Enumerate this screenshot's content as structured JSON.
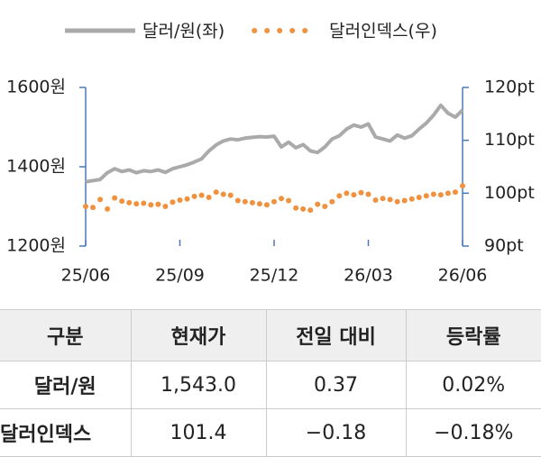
{
  "chart_data": {
    "type": "line",
    "categories": [
      "25/06",
      null,
      null,
      null,
      null,
      null,
      null,
      null,
      null,
      null,
      null,
      null,
      null,
      "25/09",
      null,
      null,
      null,
      null,
      null,
      null,
      null,
      null,
      null,
      null,
      null,
      null,
      "25/12",
      null,
      null,
      null,
      null,
      null,
      null,
      null,
      null,
      null,
      null,
      null,
      null,
      "26/03",
      null,
      null,
      null,
      null,
      null,
      null,
      null,
      null,
      null,
      null,
      null,
      null,
      "26/06"
    ],
    "series": [
      {
        "name": "달러/원(좌)",
        "color": "#aaaaaa",
        "style": "line",
        "values": [
          1362,
          1365,
          1368,
          1385,
          1395,
          1388,
          1392,
          1385,
          1390,
          1388,
          1392,
          1386,
          1395,
          1400,
          1405,
          1412,
          1420,
          1440,
          1455,
          1465,
          1470,
          1468,
          1472,
          1474,
          1476,
          1475,
          1477,
          1450,
          1462,
          1448,
          1456,
          1440,
          1436,
          1450,
          1470,
          1478,
          1495,
          1505,
          1500,
          1508,
          1475,
          1470,
          1465,
          1480,
          1472,
          1478,
          1495,
          1510,
          1530,
          1555,
          1535,
          1525,
          1543
        ]
      },
      {
        "name": "달러인덱스(우)",
        "color": "#f0913f",
        "style": "dots",
        "axis": "y2",
        "values": [
          97.5,
          97.3,
          98.8,
          97.0,
          99.1,
          98.5,
          98.2,
          98.0,
          98.1,
          97.8,
          97.9,
          97.5,
          98.3,
          98.7,
          98.9,
          99.4,
          99.6,
          99.2,
          100.2,
          99.8,
          99.6,
          98.6,
          98.4,
          98.2,
          98.0,
          97.8,
          98.4,
          99.0,
          98.6,
          97.2,
          97.0,
          96.8,
          97.9,
          97.5,
          98.4,
          99.5,
          100.0,
          99.7,
          100.1,
          99.8,
          98.7,
          99.0,
          98.8,
          98.4,
          98.6,
          98.9,
          99.2,
          99.5,
          99.8,
          99.7,
          100.0,
          100.2,
          101.4
        ]
      }
    ],
    "ylim": [
      1200,
      1600
    ],
    "yticks": [
      {
        "value": 1200,
        "label": "1200원"
      },
      {
        "value": 1400,
        "label": "1400원"
      },
      {
        "value": 1600,
        "label": "1600원"
      }
    ],
    "y2lim": [
      90,
      120
    ],
    "y2ticks": [
      {
        "value": 90,
        "label": "90pt"
      },
      {
        "value": 100,
        "label": "100pt"
      },
      {
        "value": 110,
        "label": "110pt"
      },
      {
        "value": 120,
        "label": "120pt"
      }
    ],
    "axis_color": "#4a7ab5",
    "legend": "top"
  },
  "table": {
    "header": [
      "구분",
      "현재가",
      "전일 대비",
      "등락률"
    ],
    "rows": [
      [
        "달러/원",
        "1,543.0",
        "0.37",
        "0.02%"
      ],
      [
        "달러인덱스",
        "101.4",
        "−0.18",
        "−0.18%"
      ]
    ]
  }
}
